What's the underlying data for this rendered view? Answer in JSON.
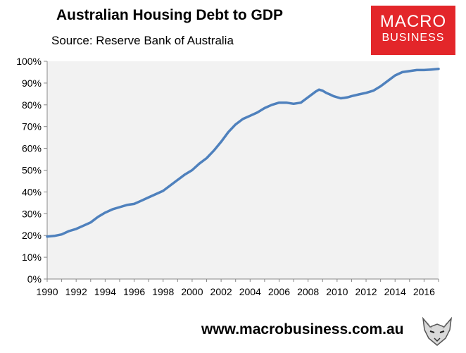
{
  "header": {
    "title": "Australian Housing Debt to GDP",
    "subtitle": "Source: Reserve Bank of Australia"
  },
  "logo": {
    "line1": "MACRO",
    "line2": "BUSINESS",
    "color": "#e3262a"
  },
  "footer": {
    "url": "www.macrobusiness.com.au",
    "icon": "fox-logo-icon"
  },
  "chart_data": {
    "type": "line",
    "title": "Australian Housing Debt to GDP",
    "xlabel": "",
    "ylabel": "",
    "xlim": [
      1990,
      2017
    ],
    "ylim": [
      0,
      100
    ],
    "x_ticks": [
      "1990",
      "1992",
      "1994",
      "1996",
      "1998",
      "2000",
      "2002",
      "2004",
      "2006",
      "2008",
      "2010",
      "2012",
      "2014",
      "2016"
    ],
    "y_ticks": [
      "0%",
      "10%",
      "20%",
      "30%",
      "40%",
      "50%",
      "60%",
      "70%",
      "80%",
      "90%",
      "100%"
    ],
    "grid": false,
    "plot_background": "#f2f2f2",
    "line_color": "#4f81bd",
    "series": [
      {
        "x": [
          1990,
          1990.5,
          1991,
          1991.5,
          1992,
          1992.5,
          1993,
          1993.5,
          1994,
          1994.5,
          1995,
          1995.5,
          1996,
          1996.5,
          1997,
          1997.5,
          1998,
          1998.5,
          1999,
          1999.5,
          2000,
          2000.5,
          2001,
          2001.5,
          2002,
          2002.5,
          2003,
          2003.5,
          2004,
          2004.5,
          2005,
          2005.5,
          2006,
          2006.5,
          2007,
          2007.5,
          2008,
          2008.5,
          2008.75,
          2009,
          2009.25,
          2009.5,
          2009.75,
          2010,
          2010.25,
          2010.5,
          2010.75,
          2011,
          2011.5,
          2012,
          2012.5,
          2013,
          2013.5,
          2014,
          2014.5,
          2015,
          2015.5,
          2016,
          2016.5,
          2017
        ],
        "values": [
          19.5,
          19.8,
          20.5,
          22,
          23,
          24.5,
          26,
          28.5,
          30.5,
          32,
          33,
          34,
          34.5,
          36,
          37.5,
          39,
          40.5,
          43,
          45.5,
          48,
          50,
          53,
          55.5,
          59,
          63,
          67.5,
          71,
          73.5,
          75,
          76.5,
          78.5,
          80,
          81,
          81,
          80.5,
          81,
          83.5,
          86,
          87,
          86.5,
          85.5,
          84.8,
          84,
          83.5,
          83,
          83.2,
          83.5,
          84,
          84.8,
          85.5,
          86.5,
          88.5,
          91,
          93.5,
          95,
          95.5,
          96,
          96,
          96.2,
          96.5
        ]
      }
    ]
  }
}
